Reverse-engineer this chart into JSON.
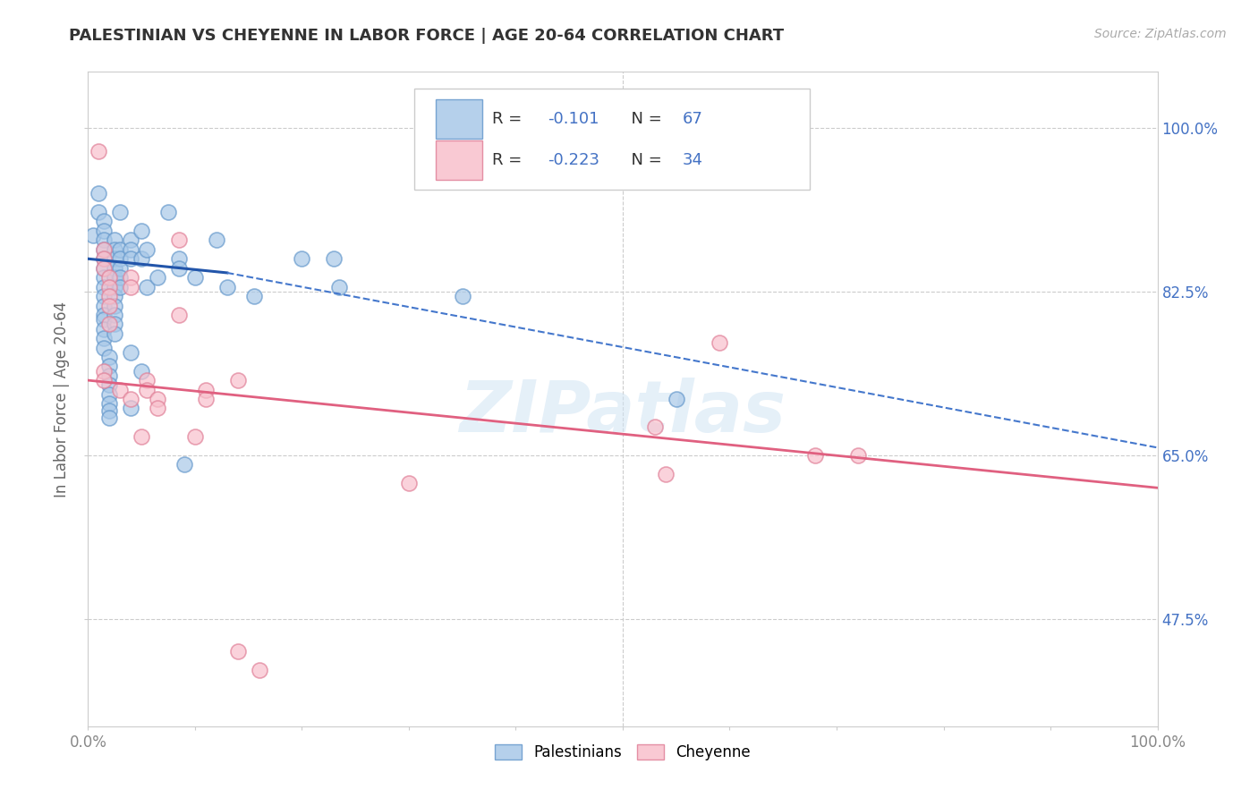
{
  "title": "PALESTINIAN VS CHEYENNE IN LABOR FORCE | AGE 20-64 CORRELATION CHART",
  "source": "Source: ZipAtlas.com",
  "ylabel": "In Labor Force | Age 20-64",
  "xlim": [
    0,
    1
  ],
  "ylim": [
    0.36,
    1.06
  ],
  "yticks": [
    0.475,
    0.65,
    0.825,
    1.0
  ],
  "ytick_labels": [
    "47.5%",
    "65.0%",
    "82.5%",
    "100.0%"
  ],
  "xticks": [
    0.0,
    0.1,
    0.2,
    0.3,
    0.4,
    0.5,
    0.6,
    0.7,
    0.8,
    0.9,
    1.0
  ],
  "xtick_labels_show": {
    "0.0": "0.0%",
    "1.0": "100.0%"
  },
  "watermark": "ZIPatlas",
  "blue_R": "-0.101",
  "blue_N": "67",
  "pink_R": "-0.223",
  "pink_N": "34",
  "blue_color": "#a8c8e8",
  "blue_edge_color": "#6699cc",
  "pink_color": "#f8c0cc",
  "pink_edge_color": "#e08098",
  "blue_scatter": [
    [
      0.005,
      0.885
    ],
    [
      0.01,
      0.93
    ],
    [
      0.01,
      0.91
    ],
    [
      0.015,
      0.9
    ],
    [
      0.015,
      0.89
    ],
    [
      0.015,
      0.88
    ],
    [
      0.015,
      0.87
    ],
    [
      0.015,
      0.86
    ],
    [
      0.015,
      0.85
    ],
    [
      0.015,
      0.84
    ],
    [
      0.015,
      0.83
    ],
    [
      0.015,
      0.82
    ],
    [
      0.015,
      0.81
    ],
    [
      0.015,
      0.8
    ],
    [
      0.015,
      0.795
    ],
    [
      0.015,
      0.785
    ],
    [
      0.015,
      0.775
    ],
    [
      0.015,
      0.765
    ],
    [
      0.02,
      0.755
    ],
    [
      0.02,
      0.745
    ],
    [
      0.02,
      0.735
    ],
    [
      0.02,
      0.725
    ],
    [
      0.02,
      0.715
    ],
    [
      0.02,
      0.705
    ],
    [
      0.02,
      0.698
    ],
    [
      0.02,
      0.69
    ],
    [
      0.025,
      0.88
    ],
    [
      0.025,
      0.87
    ],
    [
      0.025,
      0.86
    ],
    [
      0.025,
      0.85
    ],
    [
      0.025,
      0.84
    ],
    [
      0.025,
      0.83
    ],
    [
      0.025,
      0.82
    ],
    [
      0.025,
      0.81
    ],
    [
      0.025,
      0.8
    ],
    [
      0.025,
      0.79
    ],
    [
      0.025,
      0.78
    ],
    [
      0.03,
      0.91
    ],
    [
      0.03,
      0.87
    ],
    [
      0.03,
      0.86
    ],
    [
      0.03,
      0.85
    ],
    [
      0.03,
      0.84
    ],
    [
      0.03,
      0.83
    ],
    [
      0.04,
      0.88
    ],
    [
      0.04,
      0.87
    ],
    [
      0.04,
      0.86
    ],
    [
      0.04,
      0.76
    ],
    [
      0.04,
      0.7
    ],
    [
      0.05,
      0.89
    ],
    [
      0.05,
      0.86
    ],
    [
      0.05,
      0.74
    ],
    [
      0.055,
      0.87
    ],
    [
      0.055,
      0.83
    ],
    [
      0.065,
      0.84
    ],
    [
      0.075,
      0.91
    ],
    [
      0.085,
      0.86
    ],
    [
      0.085,
      0.85
    ],
    [
      0.09,
      0.64
    ],
    [
      0.1,
      0.84
    ],
    [
      0.12,
      0.88
    ],
    [
      0.13,
      0.83
    ],
    [
      0.155,
      0.82
    ],
    [
      0.2,
      0.86
    ],
    [
      0.23,
      0.86
    ],
    [
      0.235,
      0.83
    ],
    [
      0.35,
      0.82
    ],
    [
      0.55,
      0.71
    ]
  ],
  "pink_scatter": [
    [
      0.01,
      0.975
    ],
    [
      0.015,
      0.87
    ],
    [
      0.015,
      0.86
    ],
    [
      0.015,
      0.85
    ],
    [
      0.015,
      0.74
    ],
    [
      0.015,
      0.73
    ],
    [
      0.02,
      0.84
    ],
    [
      0.02,
      0.83
    ],
    [
      0.02,
      0.82
    ],
    [
      0.02,
      0.81
    ],
    [
      0.02,
      0.79
    ],
    [
      0.03,
      0.72
    ],
    [
      0.04,
      0.84
    ],
    [
      0.04,
      0.83
    ],
    [
      0.04,
      0.71
    ],
    [
      0.05,
      0.67
    ],
    [
      0.055,
      0.73
    ],
    [
      0.055,
      0.72
    ],
    [
      0.065,
      0.71
    ],
    [
      0.065,
      0.7
    ],
    [
      0.085,
      0.88
    ],
    [
      0.085,
      0.8
    ],
    [
      0.1,
      0.67
    ],
    [
      0.11,
      0.72
    ],
    [
      0.11,
      0.71
    ],
    [
      0.14,
      0.73
    ],
    [
      0.3,
      0.62
    ],
    [
      0.53,
      0.68
    ],
    [
      0.54,
      0.63
    ],
    [
      0.59,
      0.77
    ],
    [
      0.68,
      0.65
    ],
    [
      0.72,
      0.65
    ],
    [
      0.14,
      0.44
    ],
    [
      0.16,
      0.42
    ]
  ],
  "blue_line_x0": 0.0,
  "blue_line_y0": 0.86,
  "blue_line_x_solid_end": 0.13,
  "blue_line_y_solid_end": 0.845,
  "blue_line_x1": 1.0,
  "blue_line_y1": 0.658,
  "pink_line_x0": 0.0,
  "pink_line_y0": 0.73,
  "pink_line_x1": 1.0,
  "pink_line_y1": 0.615,
  "background_color": "#ffffff",
  "grid_color": "#cccccc",
  "title_color": "#333333",
  "axis_label_color": "#666666",
  "right_label_color": "#4472c4",
  "blue_legend_color": "#4472c4",
  "pink_legend_color": "#4472c4"
}
